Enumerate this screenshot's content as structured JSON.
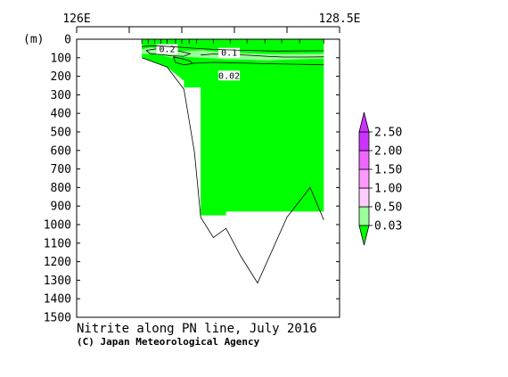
{
  "chart_data": {
    "type": "contour-section",
    "title": "Nitrite along PN line, July 2016",
    "credit": "(C) Japan Meteorological Agency",
    "ylabel_unit": "(m)",
    "x_range": [
      126,
      128.5
    ],
    "top_labels": [
      {
        "lon": 126,
        "label": "126E"
      },
      {
        "lon": 128.5,
        "label": "128.5E"
      }
    ],
    "ylim": [
      0,
      1500
    ],
    "yticks": [
      0,
      100,
      200,
      300,
      400,
      500,
      600,
      700,
      800,
      900,
      1000,
      1100,
      1200,
      1300,
      1400,
      1500
    ],
    "top_ticks_lon": [
      126,
      126.5,
      127,
      127.5,
      128,
      128.5
    ],
    "stations_lon": [
      126.62,
      126.68,
      126.74,
      126.8,
      126.86,
      126.94,
      127.0,
      127.07,
      127.14,
      127.3,
      127.46,
      127.62,
      127.79,
      127.95,
      128.12,
      128.35
    ],
    "bottom_profile": [
      {
        "lon": 126.62,
        "depth": 100
      },
      {
        "lon": 126.86,
        "depth": 150
      },
      {
        "lon": 127.02,
        "depth": 270
      },
      {
        "lon": 127.12,
        "depth": 610
      },
      {
        "lon": 127.18,
        "depth": 960
      },
      {
        "lon": 127.3,
        "depth": 1070
      },
      {
        "lon": 127.42,
        "depth": 1020
      },
      {
        "lon": 127.56,
        "depth": 1170
      },
      {
        "lon": 127.72,
        "depth": 1315
      },
      {
        "lon": 128.0,
        "depth": 960
      },
      {
        "lon": 128.22,
        "depth": 800
      },
      {
        "lon": 128.35,
        "depth": 975
      }
    ],
    "filled_regions": [
      {
        "level": "0.03-0.50",
        "color": "#00ff00",
        "polygon": [
          [
            126.62,
            0
          ],
          [
            128.35,
            0
          ],
          [
            128.35,
            930
          ],
          [
            127.42,
            930
          ],
          [
            127.42,
            950
          ],
          [
            127.18,
            950
          ],
          [
            127.18,
            260
          ],
          [
            127.02,
            260
          ],
          [
            127.02,
            225
          ],
          [
            126.86,
            150
          ],
          [
            126.62,
            100
          ]
        ]
      },
      {
        "level": "0.50-1.00",
        "color": "#99ff99",
        "polygon": [
          [
            126.62,
            55
          ],
          [
            126.7,
            45
          ],
          [
            126.8,
            50
          ],
          [
            126.9,
            60
          ],
          [
            127.0,
            65
          ],
          [
            127.2,
            60
          ],
          [
            127.4,
            72
          ],
          [
            127.6,
            75
          ],
          [
            127.8,
            80
          ],
          [
            128.0,
            80
          ],
          [
            128.35,
            78
          ],
          [
            128.35,
            105
          ],
          [
            128.0,
            110
          ],
          [
            127.8,
            115
          ],
          [
            127.6,
            110
          ],
          [
            127.4,
            108
          ],
          [
            127.2,
            100
          ],
          [
            127.0,
            95
          ],
          [
            126.9,
            100
          ],
          [
            126.8,
            85
          ],
          [
            126.7,
            80
          ],
          [
            126.62,
            80
          ]
        ]
      }
    ],
    "contours": [
      {
        "level": 0.2,
        "label": "0.2",
        "label_pos": [
          126.86,
          70
        ],
        "points": [
          [
            126.66,
            60
          ],
          [
            126.76,
            52
          ],
          [
            126.86,
            55
          ],
          [
            126.98,
            65
          ],
          [
            127.08,
            78
          ],
          [
            127.02,
            92
          ],
          [
            126.9,
            90
          ],
          [
            126.8,
            82
          ],
          [
            126.7,
            78
          ],
          [
            126.66,
            60
          ]
        ]
      },
      {
        "level": 0.2,
        "label": "",
        "points": [
          [
            126.92,
            95
          ],
          [
            127.0,
            105
          ],
          [
            127.08,
            118
          ],
          [
            127.1,
            132
          ],
          [
            127.02,
            138
          ],
          [
            126.94,
            125
          ],
          [
            126.92,
            95
          ]
        ]
      },
      {
        "level": 0.1,
        "label": "0.1",
        "label_pos": [
          127.45,
          90
        ],
        "points": [
          [
            127.18,
            85
          ],
          [
            127.3,
            80
          ],
          [
            127.45,
            82
          ],
          [
            127.62,
            86
          ],
          [
            127.8,
            92
          ],
          [
            127.96,
            96
          ],
          [
            128.18,
            96
          ],
          [
            128.35,
            95
          ]
        ]
      },
      {
        "level": 0.1,
        "label": "",
        "points": [
          [
            126.62,
            40
          ],
          [
            126.72,
            35
          ],
          [
            126.9,
            40
          ],
          [
            127.1,
            48
          ],
          [
            127.3,
            55
          ],
          [
            127.6,
            60
          ],
          [
            127.9,
            64
          ],
          [
            128.35,
            62
          ]
        ]
      },
      {
        "level": 0.02,
        "label": "0.02",
        "label_pos": [
          127.45,
          213
        ],
        "points": [
          [
            127.1,
            130
          ],
          [
            127.3,
            125
          ],
          [
            127.55,
            128
          ],
          [
            127.8,
            132
          ],
          [
            128.1,
            135
          ],
          [
            128.35,
            138
          ]
        ]
      }
    ],
    "colorbar": {
      "levels": [
        "0.03",
        "0.50",
        "1.00",
        "1.50",
        "2.00",
        "2.50"
      ],
      "colors": [
        "#00ff00",
        "#99ff99",
        "#ffccff",
        "#ff99ff",
        "#ee66ff",
        "#cc33ff"
      ]
    }
  }
}
